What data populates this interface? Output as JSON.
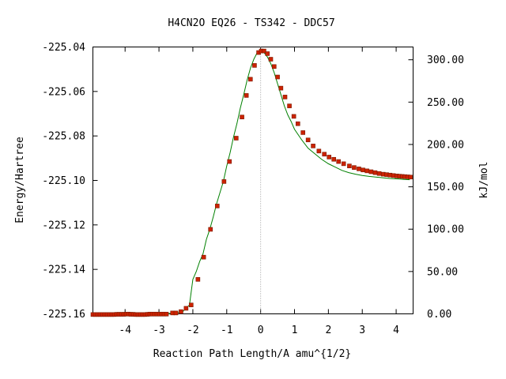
{
  "chart_data": {
    "type": "scatter",
    "title": "H4CN2O   EQ26 - TS342 - DDC57",
    "xlabel": "Reaction Path Length/A amu^{1/2}",
    "ylabel": "Energy/Hartree",
    "y2label": "kJ/mol",
    "xlim": [
      -4.95,
      4.5
    ],
    "ylim": [
      -225.16,
      -225.04
    ],
    "y2lim": [
      0.0,
      315.1
    ],
    "x_ticks": [
      -4,
      -3,
      -2,
      -1,
      0,
      1,
      2,
      3,
      4
    ],
    "x_tick_labels": [
      "-4",
      "-3",
      "-2",
      "-1",
      "0",
      "1",
      "2",
      "3",
      "4"
    ],
    "y_ticks": [
      -225.04,
      -225.06,
      -225.08,
      -225.1,
      -225.12,
      -225.14,
      -225.16
    ],
    "y_tick_labels": [
      "-225.04",
      "-225.06",
      "-225.08",
      "-225.10",
      "-225.12",
      "-225.14",
      "-225.16"
    ],
    "y2_ticks": [
      300,
      250,
      200,
      150,
      100,
      50,
      0
    ],
    "y2_tick_labels": [
      "300.00",
      "250.00",
      "200.00",
      "150.00",
      "100.00",
      "50.00",
      "0.00"
    ],
    "grid": false,
    "vertical_reference_x": 0,
    "series": [
      {
        "style": "line",
        "color": "#008000",
        "x": [
          -4.95,
          -4.8,
          -4.6,
          -4.4,
          -4.2,
          -4.0,
          -3.8,
          -3.6,
          -3.4,
          -3.2,
          -3.0,
          -2.8,
          -2.6,
          -2.5,
          -2.4,
          -2.3,
          -2.2,
          -2.1,
          -2.0,
          -1.9,
          -1.8,
          -1.7,
          -1.6,
          -1.5,
          -1.4,
          -1.3,
          -1.2,
          -1.1,
          -1.0,
          -0.9,
          -0.8,
          -0.7,
          -0.6,
          -0.5,
          -0.4,
          -0.3,
          -0.2,
          -0.1,
          0.0,
          0.1,
          0.2,
          0.3,
          0.4,
          0.5,
          0.6,
          0.7,
          0.8,
          0.9,
          1.0,
          1.2,
          1.4,
          1.6,
          1.8,
          2.0,
          2.2,
          2.4,
          2.6,
          2.8,
          3.0,
          3.2,
          3.4,
          3.6,
          3.8,
          4.0,
          4.2,
          4.4
        ],
        "y": [
          -225.1603,
          -225.1603,
          -225.1603,
          -225.1603,
          -225.1602,
          -225.1602,
          -225.1603,
          -225.1603,
          -225.1602,
          -225.1601,
          -225.1601,
          -225.1601,
          -225.1596,
          -225.1596,
          -225.1593,
          -225.159,
          -225.1575,
          -225.156,
          -225.1445,
          -225.141,
          -225.1365,
          -225.133,
          -225.1265,
          -225.122,
          -225.1165,
          -225.1105,
          -225.1055,
          -225.1005,
          -225.0935,
          -225.0875,
          -225.0805,
          -225.0745,
          -225.0675,
          -225.0615,
          -225.055,
          -225.0495,
          -225.0455,
          -225.0425,
          -225.0415,
          -225.0425,
          -225.0445,
          -225.0475,
          -225.0515,
          -225.0565,
          -225.0615,
          -225.0665,
          -225.0705,
          -225.0735,
          -225.077,
          -225.0815,
          -225.0855,
          -225.088,
          -225.0905,
          -225.0925,
          -225.094,
          -225.0955,
          -225.0965,
          -225.0972,
          -225.0978,
          -225.0982,
          -225.0985,
          -225.0988,
          -225.0991,
          -225.0993,
          -225.0995,
          -225.0997
        ]
      },
      {
        "style": "points",
        "color": "#cc2200",
        "x": [
          -4.95,
          -4.88,
          -4.81,
          -4.74,
          -4.67,
          -4.6,
          -4.53,
          -4.46,
          -4.39,
          -4.32,
          -4.25,
          -4.18,
          -4.11,
          -4.04,
          -3.97,
          -3.9,
          -3.83,
          -3.76,
          -3.69,
          -3.62,
          -3.55,
          -3.48,
          -3.41,
          -3.34,
          -3.27,
          -3.2,
          -3.13,
          -3.06,
          -2.99,
          -2.92,
          -2.85,
          -2.78,
          -2.6,
          -2.5,
          -2.35,
          -2.2,
          -2.05,
          -1.85,
          -1.68,
          -1.48,
          -1.28,
          -1.08,
          -0.92,
          -0.72,
          -0.55,
          -0.42,
          -0.3,
          -0.18,
          -0.06,
          0.02,
          0.1,
          0.2,
          0.3,
          0.4,
          0.5,
          0.6,
          0.72,
          0.85,
          0.98,
          1.1,
          1.25,
          1.4,
          1.55,
          1.72,
          1.88,
          2.02,
          2.16,
          2.3,
          2.45,
          2.62,
          2.76,
          2.9,
          3.02,
          3.14,
          3.26,
          3.38,
          3.5,
          3.62,
          3.72,
          3.82,
          3.92,
          4.02,
          4.1,
          4.18,
          4.26,
          4.34,
          4.42
        ],
        "y": [
          -225.1603,
          -225.1603,
          -225.1603,
          -225.1603,
          -225.1603,
          -225.1603,
          -225.1603,
          -225.1603,
          -225.1603,
          -225.1603,
          -225.1602,
          -225.1602,
          -225.1602,
          -225.1602,
          -225.1601,
          -225.1601,
          -225.1602,
          -225.1602,
          -225.1603,
          -225.1603,
          -225.1603,
          -225.1603,
          -225.1603,
          -225.1602,
          -225.1601,
          -225.1601,
          -225.1601,
          -225.1601,
          -225.1601,
          -225.1601,
          -225.1601,
          -225.1601,
          -225.1596,
          -225.1596,
          -225.159,
          -225.1575,
          -225.156,
          -225.1445,
          -225.1345,
          -225.122,
          -225.1115,
          -225.1005,
          -225.0915,
          -225.081,
          -225.0715,
          -225.0618,
          -225.0545,
          -225.0483,
          -225.0425,
          -225.0418,
          -225.0418,
          -225.043,
          -225.0455,
          -225.0488,
          -225.0535,
          -225.0585,
          -225.0625,
          -225.0665,
          -225.0712,
          -225.0745,
          -225.0785,
          -225.0818,
          -225.0845,
          -225.0868,
          -225.0882,
          -225.0895,
          -225.0905,
          -225.0915,
          -225.0925,
          -225.0935,
          -225.0942,
          -225.0948,
          -225.0953,
          -225.0957,
          -225.0961,
          -225.0965,
          -225.0969,
          -225.0972,
          -225.0974,
          -225.0976,
          -225.0978,
          -225.098,
          -225.0981,
          -225.0982,
          -225.0983,
          -225.0984,
          -225.0985
        ]
      }
    ]
  }
}
